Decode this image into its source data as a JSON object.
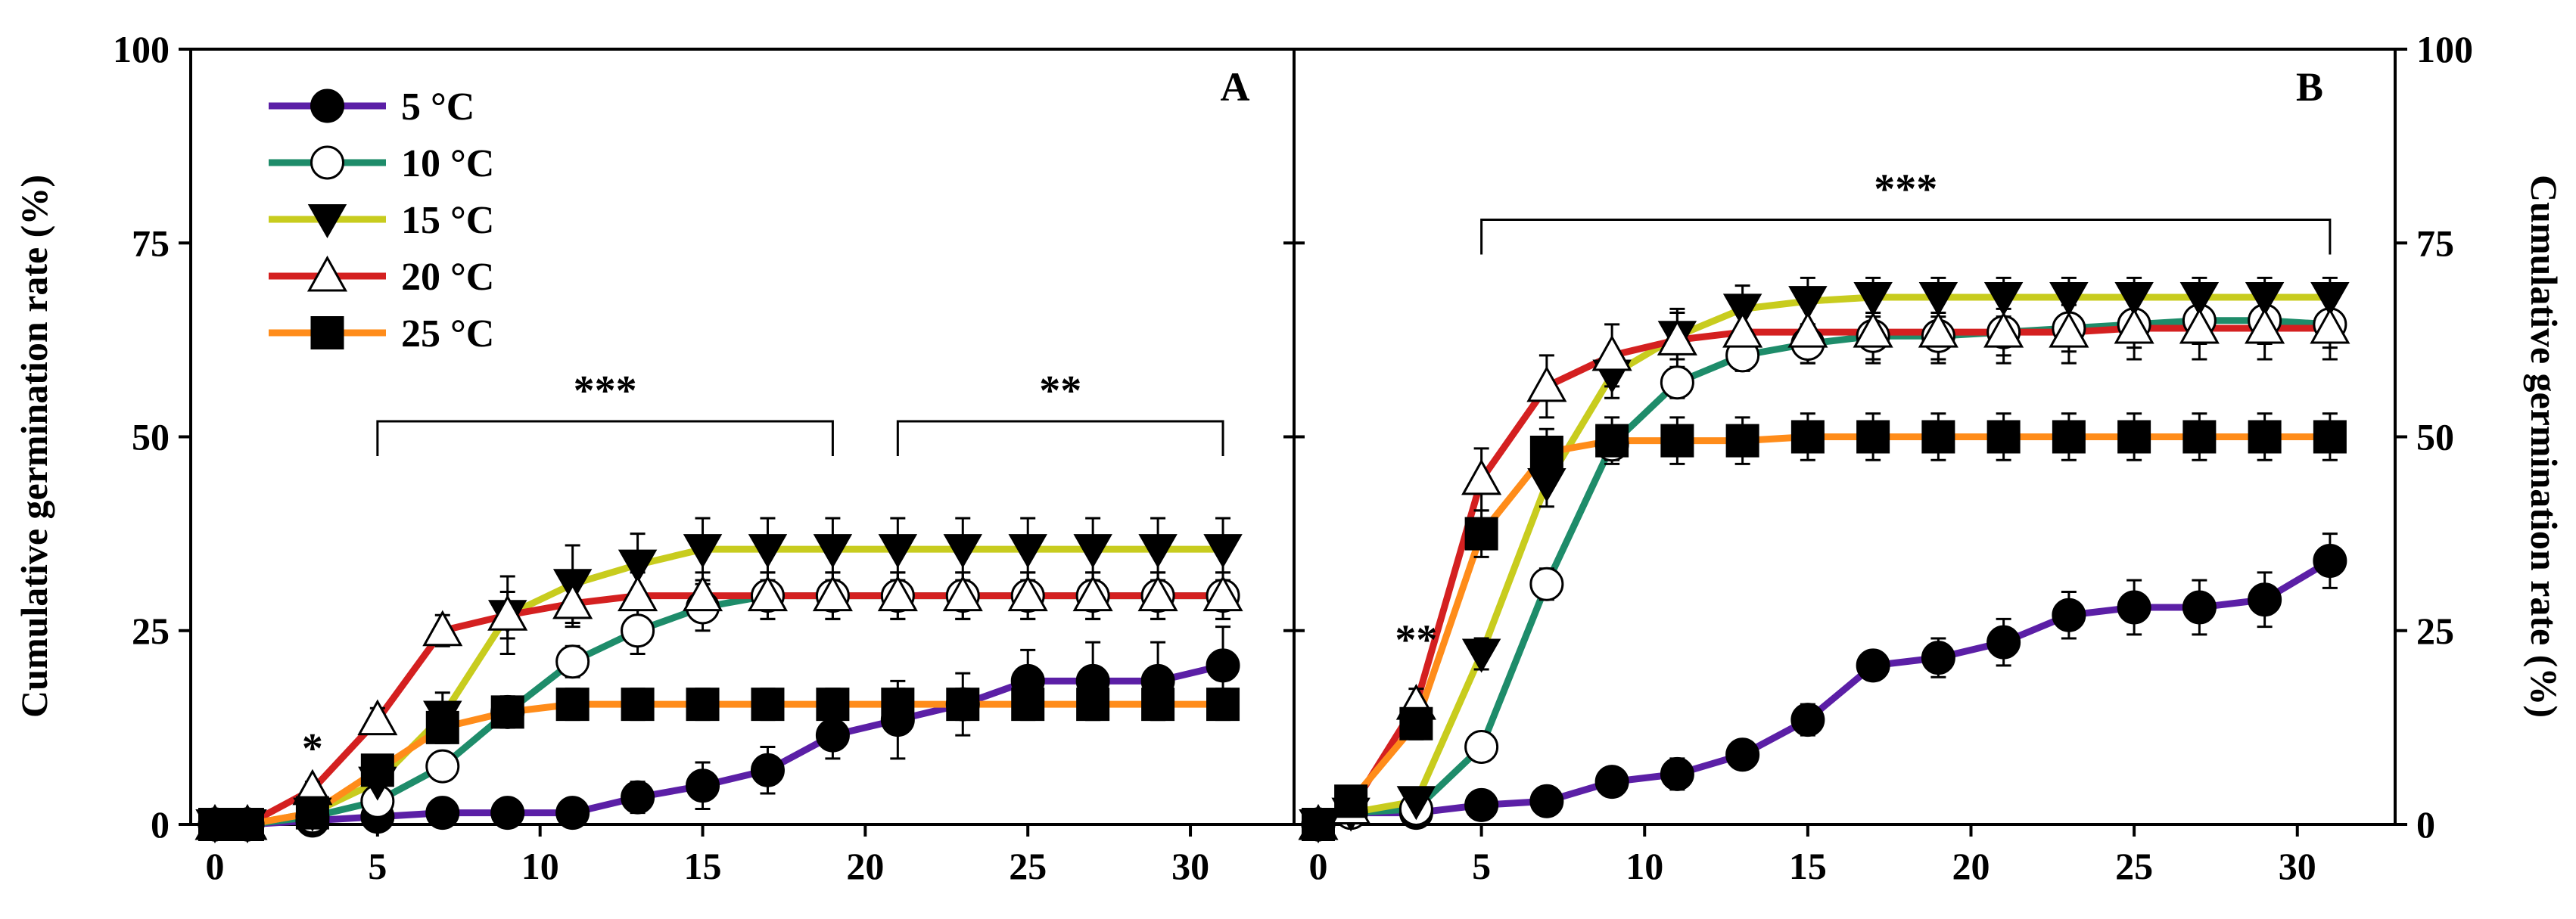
{
  "chart_data": [
    {
      "type": "line",
      "panel": "A",
      "title": "A",
      "xlabel": "",
      "ylabel": "Cumulative germination rate (%)",
      "xlim": [
        0,
        32
      ],
      "ylim": [
        0,
        100
      ],
      "xticks": [
        0,
        5,
        10,
        15,
        20,
        25,
        30
      ],
      "yticks": [
        0,
        25,
        50,
        75,
        100
      ],
      "legend_position": "top-left",
      "x": [
        0,
        1,
        3,
        5,
        7,
        9,
        11,
        13,
        15,
        17,
        19,
        21,
        23,
        25,
        27,
        29,
        31
      ],
      "series": [
        {
          "name": "5 °C",
          "color": "#5b1fa6",
          "marker": "circle-filled",
          "values": [
            0,
            0,
            0.5,
            1,
            1.5,
            1.5,
            1.5,
            3.5,
            5,
            7,
            11.5,
            13.5,
            15.5,
            18.5,
            18.5,
            18.5,
            20.5
          ],
          "errors": [
            0,
            0,
            0.5,
            1,
            1,
            1,
            1,
            2,
            3,
            3,
            3,
            5,
            4,
            4,
            5,
            5,
            5
          ]
        },
        {
          "name": "10 °C",
          "color": "#1e8c6a",
          "marker": "circle-open",
          "values": [
            0,
            0,
            1,
            3,
            7.5,
            14.5,
            21,
            25,
            28,
            29.5,
            29.5,
            29.5,
            29.5,
            29.5,
            29.5,
            29.5,
            29.5
          ],
          "errors": [
            0,
            0,
            0.5,
            1,
            1.5,
            2,
            2,
            3,
            3,
            3,
            3,
            3,
            3,
            3,
            3,
            3,
            3
          ]
        },
        {
          "name": "15 °C",
          "color": "#c8cc1e",
          "marker": "triangle-down-filled",
          "values": [
            0,
            0,
            1.5,
            5.5,
            14,
            27,
            31,
            33.5,
            35.5,
            35.5,
            35.5,
            35.5,
            35.5,
            35.5,
            35.5,
            35.5,
            35.5
          ],
          "errors": [
            0,
            0,
            1,
            2,
            3,
            5,
            5,
            4,
            4,
            4,
            4,
            4,
            4,
            4,
            4,
            4,
            4
          ]
        },
        {
          "name": "20 °C",
          "color": "#d42020",
          "marker": "triangle-up-open",
          "values": [
            0,
            0,
            4.5,
            13.5,
            25,
            27,
            28.5,
            29.5,
            29.5,
            29.5,
            29.5,
            29.5,
            29.5,
            29.5,
            29.5,
            29.5,
            29.5
          ],
          "errors": [
            0,
            0,
            1,
            1.5,
            2,
            3,
            3,
            3,
            3,
            3,
            3,
            3,
            3,
            3,
            3,
            3,
            3
          ]
        },
        {
          "name": "25 °C",
          "color": "#ff8c1a",
          "marker": "square-filled",
          "values": [
            0,
            0,
            1.5,
            7,
            12.5,
            14.5,
            15.5,
            15.5,
            15.5,
            15.5,
            15.5,
            15.5,
            15.5,
            15.5,
            15.5,
            15.5,
            15.5
          ],
          "errors": [
            0,
            0,
            0.5,
            1.5,
            2,
            2,
            2,
            2,
            2,
            2,
            2,
            2,
            2,
            2,
            2,
            2,
            2
          ]
        }
      ],
      "annotations": [
        {
          "text": "*",
          "x": 3,
          "y": 8
        },
        {
          "text": "***",
          "x_range": [
            5,
            19
          ],
          "y": 52
        },
        {
          "text": "**",
          "x_range": [
            21,
            31
          ],
          "y": 52
        }
      ]
    },
    {
      "type": "line",
      "panel": "B",
      "title": "B",
      "xlabel": "",
      "ylabel": "Cumulative germination rate (%)",
      "xlim": [
        0,
        32
      ],
      "ylim": [
        0,
        100
      ],
      "xticks": [
        0,
        5,
        10,
        15,
        20,
        25,
        30
      ],
      "yticks": [
        0,
        25,
        50,
        75,
        100
      ],
      "x": [
        0,
        1,
        3,
        5,
        7,
        9,
        11,
        13,
        15,
        17,
        19,
        21,
        23,
        25,
        27,
        29,
        31
      ],
      "series": [
        {
          "name": "5 °C",
          "color": "#5b1fa6",
          "marker": "circle-filled",
          "values": [
            0,
            1.5,
            1.5,
            2.5,
            3,
            5.5,
            6.5,
            9,
            13.5,
            20.5,
            21.5,
            23.5,
            27,
            28,
            28,
            29,
            34
          ],
          "errors": [
            0,
            0.5,
            0.5,
            1,
            1,
            1.5,
            2,
            1.5,
            2,
            1.5,
            2.5,
            3,
            3,
            3.5,
            3.5,
            3.5,
            3.5
          ]
        },
        {
          "name": "10 °C",
          "color": "#1e8c6a",
          "marker": "circle-open",
          "values": [
            0,
            1.5,
            2,
            10,
            31,
            49,
            57,
            60.5,
            62,
            63,
            63,
            63.5,
            64,
            64.5,
            65,
            65,
            64.5
          ],
          "errors": [
            0,
            0.5,
            1,
            1.5,
            2,
            2,
            2,
            2,
            2.5,
            3,
            3,
            3,
            3,
            3,
            3,
            3,
            3
          ]
        },
        {
          "name": "15 °C",
          "color": "#c8cc1e",
          "marker": "triangle-down-filled",
          "values": [
            0,
            1.5,
            3,
            22,
            44,
            58,
            63,
            66.5,
            67.5,
            68,
            68,
            68,
            68,
            68,
            68,
            68,
            68
          ],
          "errors": [
            0,
            0.5,
            1,
            2,
            3,
            3,
            3,
            3,
            3,
            2.5,
            2.5,
            2.5,
            2.5,
            2.5,
            2.5,
            2.5,
            2.5
          ]
        },
        {
          "name": "20 °C",
          "color": "#d42020",
          "marker": "triangle-up-open",
          "values": [
            0,
            2,
            15.5,
            44.5,
            56.5,
            60.5,
            62.5,
            63.5,
            63.5,
            63.5,
            63.5,
            63.5,
            63.5,
            64,
            64,
            64,
            64
          ],
          "errors": [
            0,
            1,
            2,
            4,
            4,
            4,
            4,
            4,
            4,
            4,
            4,
            4,
            4,
            4,
            4,
            4,
            4
          ]
        },
        {
          "name": "25 °C",
          "color": "#ff8c1a",
          "marker": "square-filled",
          "values": [
            0,
            3,
            13,
            37.5,
            48,
            49.5,
            49.5,
            49.5,
            50,
            50,
            50,
            50,
            50,
            50,
            50,
            50,
            50
          ],
          "errors": [
            0,
            1,
            2,
            3,
            3,
            3,
            3,
            3,
            3,
            3,
            3,
            3,
            3,
            3,
            3,
            3,
            3
          ]
        }
      ],
      "annotations": [
        {
          "text": "**",
          "x": 3,
          "y": 22
        },
        {
          "text": "***",
          "x_range": [
            5,
            31
          ],
          "y": 78
        }
      ]
    }
  ]
}
